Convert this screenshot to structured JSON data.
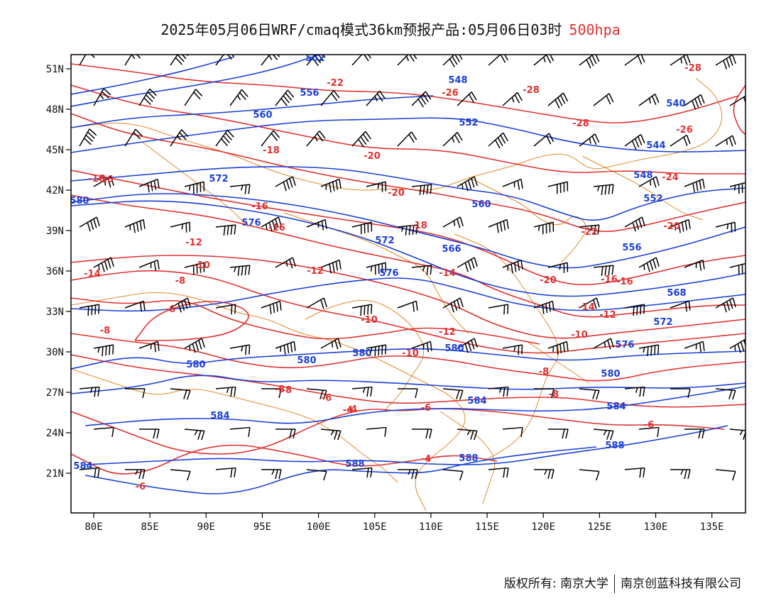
{
  "title": {
    "main": "2025年05月06日WRF/cmaq模式36km预报产品:05月06日03时",
    "level": "500hpa"
  },
  "colors": {
    "height_contour": "#1a3fd6",
    "temperature_contour": "#e03030",
    "border_line": "#e08a2a",
    "wind_barb": "#000000",
    "title_level": "#e03030"
  },
  "map": {
    "lon_ticks": [
      "80E",
      "85E",
      "90E",
      "95E",
      "100E",
      "105E",
      "110E",
      "115E",
      "120E",
      "125E",
      "130E",
      "135E"
    ],
    "lat_ticks": [
      "51N",
      "48N",
      "45N",
      "42N",
      "39N",
      "36N",
      "33N",
      "30N",
      "27N",
      "24N",
      "21N"
    ],
    "lon_values": [
      80,
      85,
      90,
      95,
      100,
      105,
      110,
      115,
      120,
      125,
      130,
      135
    ],
    "lat_values": [
      51,
      48,
      45,
      42,
      39,
      36,
      33,
      30,
      27,
      24,
      21
    ],
    "height_labels": [
      "552",
      "556",
      "560",
      "548",
      "552",
      "540",
      "544",
      "548",
      "552",
      "572",
      "580",
      "560",
      "576",
      "572",
      "566",
      "556",
      "576",
      "568",
      "572",
      "580",
      "580",
      "580",
      "580",
      "576",
      "584",
      "580",
      "584",
      "584",
      "588",
      "588",
      "584",
      "588"
    ],
    "temperature_labels": [
      "-22",
      "-26",
      "-28",
      "-28",
      "-26",
      "-28",
      "-20",
      "-16",
      "-18",
      "-20",
      "-24",
      "-16",
      "-18",
      "-16",
      "-22",
      "-20",
      "-14",
      "-12",
      "-12",
      "-10",
      "-14",
      "-20",
      "-16",
      "-16",
      "-8",
      "-10",
      "-6",
      "-14",
      "-12",
      "-8",
      "-10",
      "-12",
      "-10",
      "-8",
      "-8",
      "-6",
      "-4",
      "-4",
      "-6",
      "-8",
      "-6",
      "-6",
      "-4",
      "-8",
      "-16"
    ]
  },
  "footer": {
    "copyright": "版权所有: 南京大学",
    "company": "南京创蓝科技有限公司"
  }
}
